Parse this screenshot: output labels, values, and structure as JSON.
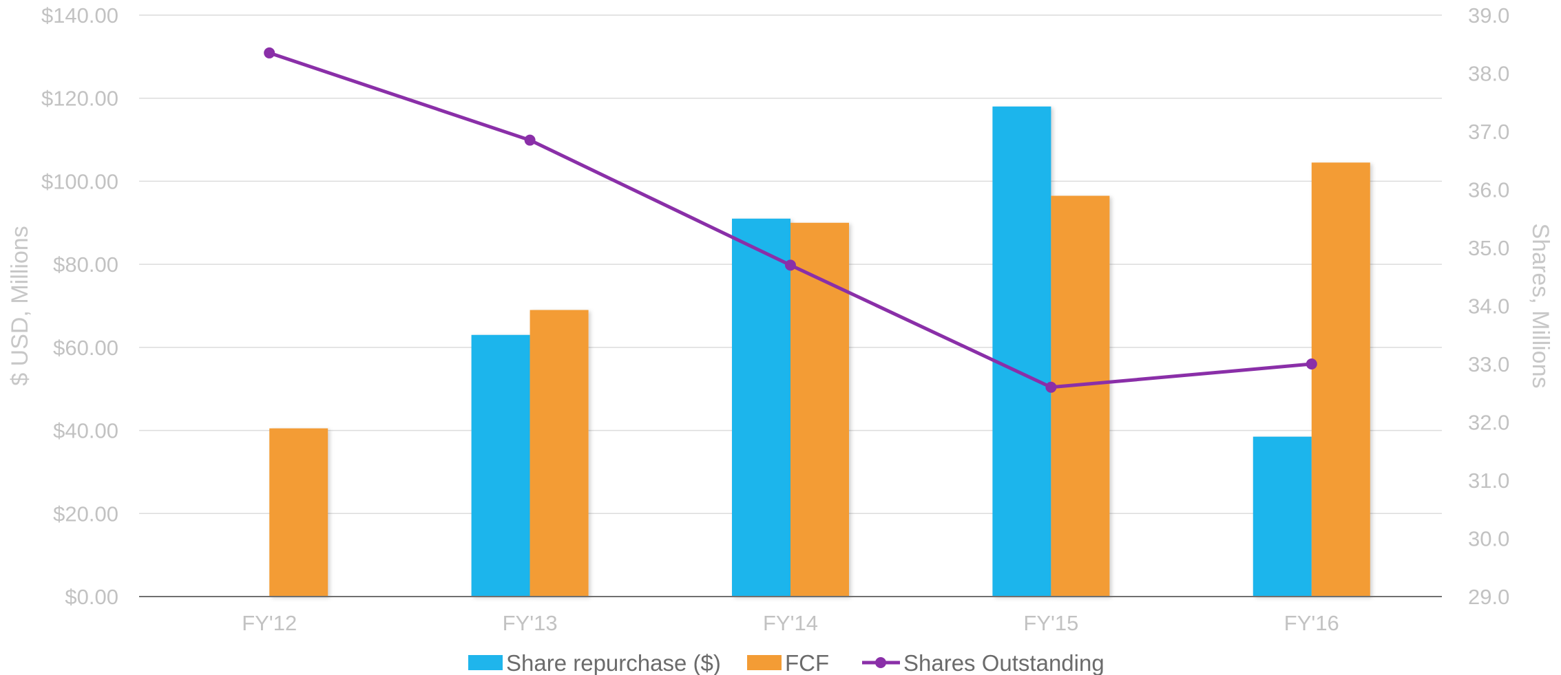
{
  "chart_data": {
    "type": "bar",
    "categories": [
      "FY'12",
      "FY'13",
      "FY'14",
      "FY'15",
      "FY'16"
    ],
    "series": [
      {
        "name": "Share repurchase ($)",
        "kind": "bar",
        "axis": "left",
        "color": "#1fb5ec",
        "values": [
          0,
          63,
          91,
          118,
          38.5
        ]
      },
      {
        "name": "FCF",
        "kind": "bar",
        "axis": "left",
        "color": "#f39c35",
        "values": [
          40.5,
          69,
          90,
          96.5,
          104.5
        ]
      },
      {
        "name": "Shares Outstanding",
        "kind": "line",
        "axis": "right",
        "color": "#8a2fa8",
        "values": [
          38.35,
          36.85,
          34.7,
          32.6,
          33.0
        ]
      }
    ],
    "ylabel": "$ USD, Millions",
    "y2label": "Shares, Millions",
    "ylim": [
      0,
      140
    ],
    "y2lim": [
      29,
      39
    ],
    "yticks": [
      "$0.00",
      "$20.00",
      "$40.00",
      "$60.00",
      "$80.00",
      "$100.00",
      "$120.00",
      "$140.00"
    ],
    "y2ticks": [
      "29.0",
      "30.0",
      "31.0",
      "32.0",
      "33.0",
      "34.0",
      "35.0",
      "36.0",
      "37.0",
      "38.0",
      "39.0"
    ],
    "grid": true,
    "legend_position": "bottom"
  }
}
